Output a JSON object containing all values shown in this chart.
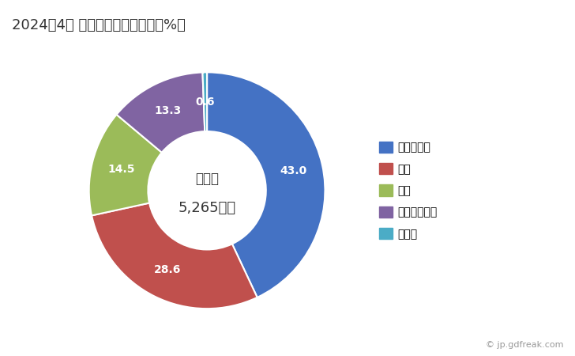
{
  "title": "2024年4月 輸出相手国のシェア（%）",
  "labels": [
    "マレーシア",
    "米国",
    "タイ",
    "インドネシア",
    "その他"
  ],
  "values": [
    43.0,
    28.6,
    14.5,
    13.3,
    0.6
  ],
  "colors": [
    "#4472C4",
    "#C0504D",
    "#9BBB59",
    "#8064A2",
    "#4BACC6"
  ],
  "center_label_line1": "総　額",
  "center_label_line2": "5,265万円",
  "watermark": "© jp.gdfreak.com"
}
